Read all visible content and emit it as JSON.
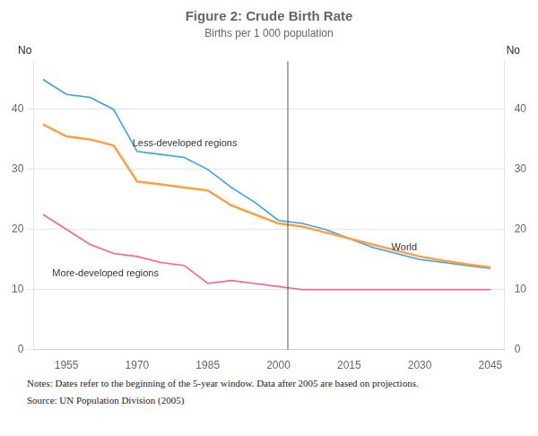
{
  "chart_data": {
    "type": "line",
    "title": "Figure 2: Crude Birth Rate",
    "subtitle": "Births per 1 000 population",
    "notes": "Notes:   Dates refer to the beginning of the 5-year window. Data after 2005 are based on projections.",
    "source": "Source: UN Population Division (2005)",
    "y_label": "No",
    "y2_label": "No",
    "x": [
      1950,
      1955,
      1960,
      1965,
      1970,
      1975,
      1980,
      1985,
      1990,
      1995,
      2000,
      2005,
      2010,
      2015,
      2020,
      2025,
      2030,
      2035,
      2040,
      2045
    ],
    "series": [
      {
        "name": "Less-developed regions",
        "values": [
          45.0,
          42.5,
          42.0,
          40.0,
          33.0,
          32.5,
          32.0,
          30.0,
          27.0,
          24.5,
          21.5,
          21.0,
          20.0,
          18.5,
          17.0,
          16.0,
          15.0,
          14.5,
          14.0,
          13.5
        ]
      },
      {
        "name": "More-developed regions",
        "values": [
          22.5,
          20.0,
          17.5,
          16.0,
          15.5,
          14.5,
          14.0,
          11.0,
          11.5,
          11.0,
          10.5,
          10.0,
          10.0,
          10.0,
          10.0,
          10.0,
          10.0,
          10.0,
          10.0,
          10.0
        ]
      },
      {
        "name": "World",
        "values": [
          37.5,
          35.5,
          35.0,
          34.0,
          28.0,
          27.5,
          27.0,
          26.5,
          24.0,
          22.5,
          21.0,
          20.5,
          19.5,
          18.5,
          17.5,
          16.5,
          15.5,
          14.8,
          14.2,
          13.7
        ]
      }
    ],
    "annotations": [
      {
        "text": "Less-developed regions",
        "x": 1969,
        "y": 33.8
      },
      {
        "text": "More-developed regions",
        "x": 1952,
        "y": 12.2
      },
      {
        "text": "World",
        "x": 2024,
        "y": 16.5
      }
    ],
    "vertical_line": 2002,
    "xlim": [
      1948,
      2048
    ],
    "xticks": [
      1955,
      1970,
      1985,
      2000,
      2015,
      2030,
      2045
    ],
    "ylim": [
      0,
      48
    ],
    "yticks": [
      0,
      10,
      20,
      30,
      40
    ],
    "y2lim": [
      0,
      48
    ],
    "y2ticks": [
      0,
      10,
      20,
      30,
      40
    ],
    "grid": "y"
  }
}
